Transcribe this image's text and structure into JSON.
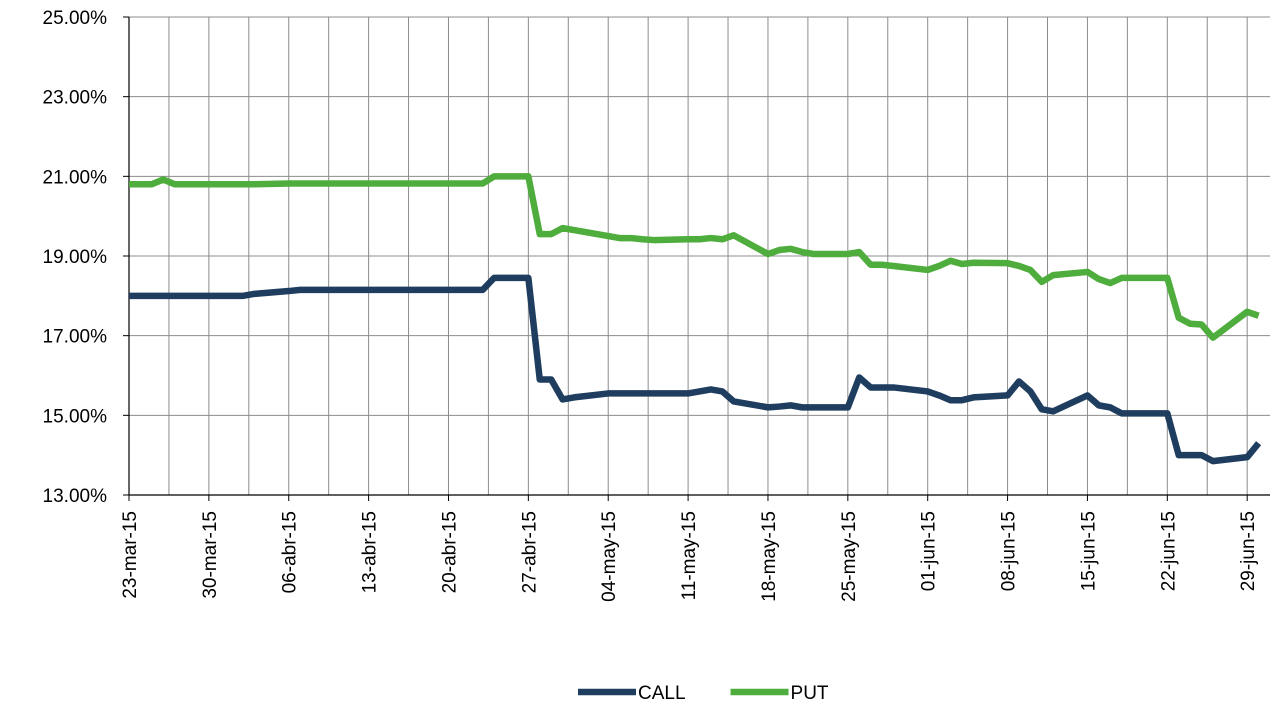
{
  "chart_data": {
    "type": "line",
    "x": [
      "2015-03-23",
      "2015-03-24",
      "2015-03-25",
      "2015-03-26",
      "2015-03-27",
      "2015-03-30",
      "2015-03-31",
      "2015-04-01",
      "2015-04-02",
      "2015-04-03",
      "2015-04-06",
      "2015-04-07",
      "2015-04-08",
      "2015-04-09",
      "2015-04-10",
      "2015-04-13",
      "2015-04-14",
      "2015-04-15",
      "2015-04-16",
      "2015-04-17",
      "2015-04-20",
      "2015-04-21",
      "2015-04-22",
      "2015-04-23",
      "2015-04-24",
      "2015-04-27",
      "2015-04-28",
      "2015-04-29",
      "2015-04-30",
      "2015-05-01",
      "2015-05-04",
      "2015-05-05",
      "2015-05-06",
      "2015-05-07",
      "2015-05-08",
      "2015-05-11",
      "2015-05-12",
      "2015-05-13",
      "2015-05-14",
      "2015-05-15",
      "2015-05-18",
      "2015-05-19",
      "2015-05-20",
      "2015-05-21",
      "2015-05-22",
      "2015-05-25",
      "2015-05-26",
      "2015-05-27",
      "2015-05-28",
      "2015-05-29",
      "2015-06-01",
      "2015-06-02",
      "2015-06-03",
      "2015-06-04",
      "2015-06-05",
      "2015-06-08",
      "2015-06-09",
      "2015-06-10",
      "2015-06-11",
      "2015-06-12",
      "2015-06-15",
      "2015-06-16",
      "2015-06-17",
      "2015-06-18",
      "2015-06-19",
      "2015-06-22",
      "2015-06-23",
      "2015-06-24",
      "2015-06-25",
      "2015-06-26",
      "2015-06-29",
      "2015-06-30"
    ],
    "series": [
      {
        "name": "CALL",
        "color": "#1f3d5e",
        "values": [
          18,
          18,
          18,
          18,
          18,
          18,
          18,
          18,
          18,
          18.05,
          18.12,
          18.15,
          18.15,
          18.15,
          18.15,
          18.15,
          18.15,
          18.15,
          18.15,
          18.15,
          18.15,
          18.15,
          18.15,
          18.15,
          18.45,
          18.45,
          15.9,
          15.9,
          15.4,
          15.45,
          15.55,
          15.55,
          15.55,
          15.55,
          15.55,
          15.55,
          15.6,
          15.65,
          15.6,
          15.35,
          15.2,
          15.22,
          15.25,
          15.2,
          15.2,
          15.2,
          15.95,
          15.7,
          15.7,
          15.7,
          15.6,
          15.5,
          15.38,
          15.38,
          15.45,
          15.5,
          15.85,
          15.6,
          15.15,
          15.1,
          15.5,
          15.25,
          15.2,
          15.05,
          15.05,
          15.05,
          14.0,
          14.0,
          14.0,
          13.85,
          13.95,
          14.3
        ]
      },
      {
        "name": "PUT",
        "color": "#4ead3c",
        "values": [
          20.8,
          20.8,
          20.8,
          20.92,
          20.8,
          20.8,
          20.8,
          20.8,
          20.8,
          20.8,
          20.82,
          20.82,
          20.82,
          20.82,
          20.82,
          20.82,
          20.82,
          20.82,
          20.82,
          20.82,
          20.82,
          20.82,
          20.82,
          20.82,
          21.0,
          21.0,
          19.55,
          19.55,
          19.7,
          19.65,
          19.5,
          19.45,
          19.45,
          19.42,
          19.4,
          19.42,
          19.42,
          19.45,
          19.42,
          19.52,
          19.05,
          19.15,
          19.18,
          19.1,
          19.05,
          19.05,
          19.1,
          18.78,
          18.78,
          18.75,
          18.65,
          18.75,
          18.88,
          18.8,
          18.83,
          18.82,
          18.75,
          18.65,
          18.35,
          18.52,
          18.6,
          18.42,
          18.32,
          18.45,
          18.45,
          18.45,
          17.45,
          17.3,
          17.28,
          16.95,
          17.6,
          17.5
        ]
      }
    ],
    "xlim": [
      "2015-03-23",
      "2015-07-01"
    ],
    "xticks": [
      {
        "value": "2015-03-23",
        "label": "23-mar-15"
      },
      {
        "value": "2015-03-30",
        "label": "30-mar-15"
      },
      {
        "value": "2015-04-06",
        "label": "06-abr-15"
      },
      {
        "value": "2015-04-13",
        "label": "13-abr-15"
      },
      {
        "value": "2015-04-20",
        "label": "20-abr-15"
      },
      {
        "value": "2015-04-27",
        "label": "27-abr-15"
      },
      {
        "value": "2015-05-04",
        "label": "04-may-15"
      },
      {
        "value": "2015-05-11",
        "label": "11-may-15"
      },
      {
        "value": "2015-05-18",
        "label": "18-may-15"
      },
      {
        "value": "2015-05-25",
        "label": "25-may-15"
      },
      {
        "value": "2015-06-01",
        "label": "01-jun-15"
      },
      {
        "value": "2015-06-08",
        "label": "08-jun-15"
      },
      {
        "value": "2015-06-15",
        "label": "15-jun-15"
      },
      {
        "value": "2015-06-22",
        "label": "22-jun-15"
      },
      {
        "value": "2015-06-29",
        "label": "29-jun-15"
      }
    ],
    "ylim": [
      13,
      25
    ],
    "yticks": [
      {
        "value": 13,
        "label": "13.00%"
      },
      {
        "value": 15,
        "label": "15.00%"
      },
      {
        "value": 17,
        "label": "17.00%"
      },
      {
        "value": 19,
        "label": "19.00%"
      },
      {
        "value": 21,
        "label": "21.00%"
      },
      {
        "value": 23,
        "label": "23.00%"
      },
      {
        "value": 25,
        "label": "25.00%"
      }
    ],
    "grid": true,
    "legend": "bottom"
  }
}
